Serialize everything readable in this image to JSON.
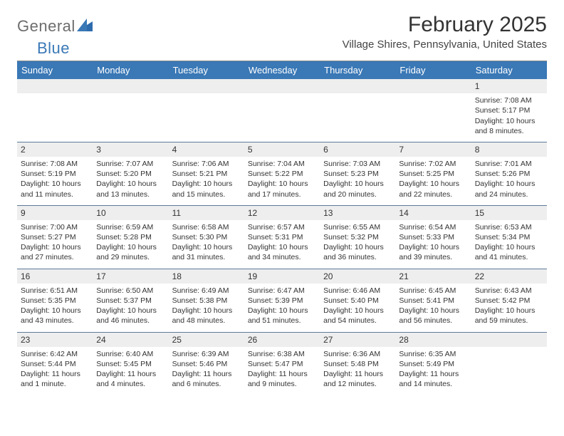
{
  "logo": {
    "text1": "General",
    "text2": "Blue"
  },
  "title": "February 2025",
  "location": "Village Shires, Pennsylvania, United States",
  "colors": {
    "header_bg": "#3a78b6",
    "header_text": "#ffffff",
    "daynum_bg": "#eeeeee",
    "row_border": "#5d7a9a",
    "text": "#333333",
    "logo_gray": "#6d6d6d",
    "logo_blue": "#3a78b6"
  },
  "day_labels": [
    "Sunday",
    "Monday",
    "Tuesday",
    "Wednesday",
    "Thursday",
    "Friday",
    "Saturday"
  ],
  "weeks": [
    [
      {
        "n": "",
        "lines": []
      },
      {
        "n": "",
        "lines": []
      },
      {
        "n": "",
        "lines": []
      },
      {
        "n": "",
        "lines": []
      },
      {
        "n": "",
        "lines": []
      },
      {
        "n": "",
        "lines": []
      },
      {
        "n": "1",
        "lines": [
          "Sunrise: 7:08 AM",
          "Sunset: 5:17 PM",
          "Daylight: 10 hours and 8 minutes."
        ]
      }
    ],
    [
      {
        "n": "2",
        "lines": [
          "Sunrise: 7:08 AM",
          "Sunset: 5:19 PM",
          "Daylight: 10 hours and 11 minutes."
        ]
      },
      {
        "n": "3",
        "lines": [
          "Sunrise: 7:07 AM",
          "Sunset: 5:20 PM",
          "Daylight: 10 hours and 13 minutes."
        ]
      },
      {
        "n": "4",
        "lines": [
          "Sunrise: 7:06 AM",
          "Sunset: 5:21 PM",
          "Daylight: 10 hours and 15 minutes."
        ]
      },
      {
        "n": "5",
        "lines": [
          "Sunrise: 7:04 AM",
          "Sunset: 5:22 PM",
          "Daylight: 10 hours and 17 minutes."
        ]
      },
      {
        "n": "6",
        "lines": [
          "Sunrise: 7:03 AM",
          "Sunset: 5:23 PM",
          "Daylight: 10 hours and 20 minutes."
        ]
      },
      {
        "n": "7",
        "lines": [
          "Sunrise: 7:02 AM",
          "Sunset: 5:25 PM",
          "Daylight: 10 hours and 22 minutes."
        ]
      },
      {
        "n": "8",
        "lines": [
          "Sunrise: 7:01 AM",
          "Sunset: 5:26 PM",
          "Daylight: 10 hours and 24 minutes."
        ]
      }
    ],
    [
      {
        "n": "9",
        "lines": [
          "Sunrise: 7:00 AM",
          "Sunset: 5:27 PM",
          "Daylight: 10 hours and 27 minutes."
        ]
      },
      {
        "n": "10",
        "lines": [
          "Sunrise: 6:59 AM",
          "Sunset: 5:28 PM",
          "Daylight: 10 hours and 29 minutes."
        ]
      },
      {
        "n": "11",
        "lines": [
          "Sunrise: 6:58 AM",
          "Sunset: 5:30 PM",
          "Daylight: 10 hours and 31 minutes."
        ]
      },
      {
        "n": "12",
        "lines": [
          "Sunrise: 6:57 AM",
          "Sunset: 5:31 PM",
          "Daylight: 10 hours and 34 minutes."
        ]
      },
      {
        "n": "13",
        "lines": [
          "Sunrise: 6:55 AM",
          "Sunset: 5:32 PM",
          "Daylight: 10 hours and 36 minutes."
        ]
      },
      {
        "n": "14",
        "lines": [
          "Sunrise: 6:54 AM",
          "Sunset: 5:33 PM",
          "Daylight: 10 hours and 39 minutes."
        ]
      },
      {
        "n": "15",
        "lines": [
          "Sunrise: 6:53 AM",
          "Sunset: 5:34 PM",
          "Daylight: 10 hours and 41 minutes."
        ]
      }
    ],
    [
      {
        "n": "16",
        "lines": [
          "Sunrise: 6:51 AM",
          "Sunset: 5:35 PM",
          "Daylight: 10 hours and 43 minutes."
        ]
      },
      {
        "n": "17",
        "lines": [
          "Sunrise: 6:50 AM",
          "Sunset: 5:37 PM",
          "Daylight: 10 hours and 46 minutes."
        ]
      },
      {
        "n": "18",
        "lines": [
          "Sunrise: 6:49 AM",
          "Sunset: 5:38 PM",
          "Daylight: 10 hours and 48 minutes."
        ]
      },
      {
        "n": "19",
        "lines": [
          "Sunrise: 6:47 AM",
          "Sunset: 5:39 PM",
          "Daylight: 10 hours and 51 minutes."
        ]
      },
      {
        "n": "20",
        "lines": [
          "Sunrise: 6:46 AM",
          "Sunset: 5:40 PM",
          "Daylight: 10 hours and 54 minutes."
        ]
      },
      {
        "n": "21",
        "lines": [
          "Sunrise: 6:45 AM",
          "Sunset: 5:41 PM",
          "Daylight: 10 hours and 56 minutes."
        ]
      },
      {
        "n": "22",
        "lines": [
          "Sunrise: 6:43 AM",
          "Sunset: 5:42 PM",
          "Daylight: 10 hours and 59 minutes."
        ]
      }
    ],
    [
      {
        "n": "23",
        "lines": [
          "Sunrise: 6:42 AM",
          "Sunset: 5:44 PM",
          "Daylight: 11 hours and 1 minute."
        ]
      },
      {
        "n": "24",
        "lines": [
          "Sunrise: 6:40 AM",
          "Sunset: 5:45 PM",
          "Daylight: 11 hours and 4 minutes."
        ]
      },
      {
        "n": "25",
        "lines": [
          "Sunrise: 6:39 AM",
          "Sunset: 5:46 PM",
          "Daylight: 11 hours and 6 minutes."
        ]
      },
      {
        "n": "26",
        "lines": [
          "Sunrise: 6:38 AM",
          "Sunset: 5:47 PM",
          "Daylight: 11 hours and 9 minutes."
        ]
      },
      {
        "n": "27",
        "lines": [
          "Sunrise: 6:36 AM",
          "Sunset: 5:48 PM",
          "Daylight: 11 hours and 12 minutes."
        ]
      },
      {
        "n": "28",
        "lines": [
          "Sunrise: 6:35 AM",
          "Sunset: 5:49 PM",
          "Daylight: 11 hours and 14 minutes."
        ]
      },
      {
        "n": "",
        "lines": []
      }
    ]
  ]
}
